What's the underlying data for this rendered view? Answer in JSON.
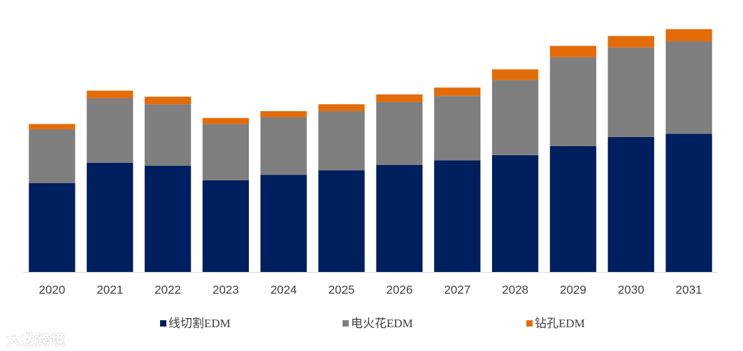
{
  "chart_data": {
    "type": "bar",
    "stacked": true,
    "title": "",
    "xlabel": "",
    "ylabel": "",
    "categories": [
      "2020",
      "2021",
      "2022",
      "2023",
      "2024",
      "2025",
      "2026",
      "2027",
      "2028",
      "2029",
      "2030",
      "2031"
    ],
    "series": [
      {
        "name": "线切割EDM",
        "color": "#001F5F",
        "values": [
          117,
          144,
          140,
          121,
          128,
          134,
          141,
          147,
          154,
          166,
          178,
          182
        ]
      },
      {
        "name": "电火花EDM",
        "color": "#7F7F7F",
        "values": [
          71,
          85,
          81,
          74,
          76,
          78,
          83,
          85,
          99,
          117,
          118,
          122
        ]
      },
      {
        "name": "钻孔EDM",
        "color": "#E36C09",
        "values": [
          7,
          10,
          10,
          8,
          8,
          9,
          10,
          11,
          14,
          15,
          15,
          16
        ]
      }
    ],
    "ylim": [
      0,
      340
    ],
    "y_axis_visible": false,
    "grid": false,
    "legend_position": "bottom"
  },
  "watermark": {
    "text": "大数跨境"
  }
}
